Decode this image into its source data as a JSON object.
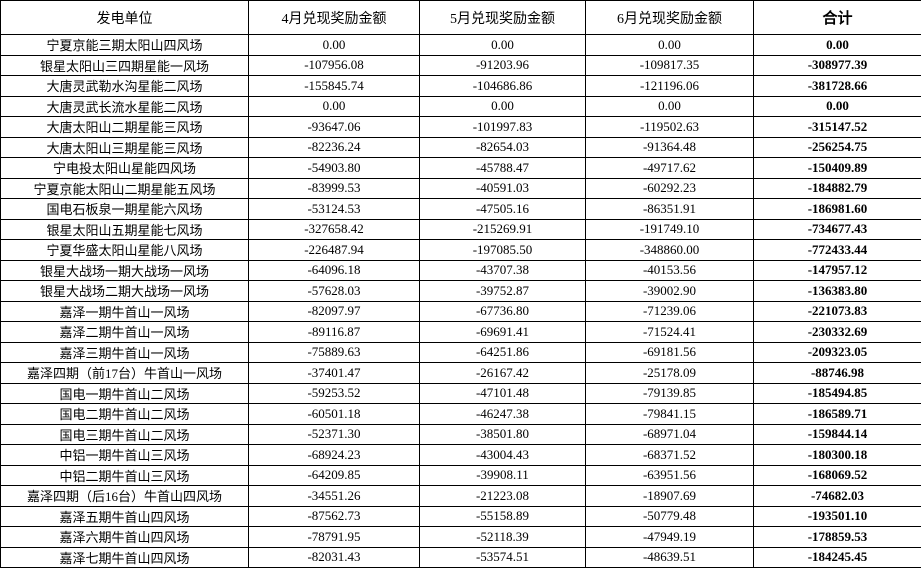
{
  "colors": {
    "border": "#000000",
    "text": "#000000",
    "background": "#ffffff"
  },
  "table": {
    "headers": [
      "发电单位",
      "4月兑现奖励金额",
      "5月兑现奖励金额",
      "6月兑现奖励金额",
      "合计"
    ],
    "rows": [
      [
        "宁夏京能三期太阳山四风场",
        "0.00",
        "0.00",
        "0.00",
        "0.00"
      ],
      [
        "银星太阳山三四期星能一风场",
        "-107956.08",
        "-91203.96",
        "-109817.35",
        "-308977.39"
      ],
      [
        "大唐灵武勒水沟星能二风场",
        "-155845.74",
        "-104686.86",
        "-121196.06",
        "-381728.66"
      ],
      [
        "大唐灵武长流水星能二风场",
        "0.00",
        "0.00",
        "0.00",
        "0.00"
      ],
      [
        "大唐太阳山二期星能三风场",
        "-93647.06",
        "-101997.83",
        "-119502.63",
        "-315147.52"
      ],
      [
        "大唐太阳山三期星能三风场",
        "-82236.24",
        "-82654.03",
        "-91364.48",
        "-256254.75"
      ],
      [
        "宁电投太阳山星能四风场",
        "-54903.80",
        "-45788.47",
        "-49717.62",
        "-150409.89"
      ],
      [
        "宁夏京能太阳山二期星能五风场",
        "-83999.53",
        "-40591.03",
        "-60292.23",
        "-184882.79"
      ],
      [
        "国电石板泉一期星能六风场",
        "-53124.53",
        "-47505.16",
        "-86351.91",
        "-186981.60"
      ],
      [
        "银星太阳山五期星能七风场",
        "-327658.42",
        "-215269.91",
        "-191749.10",
        "-734677.43"
      ],
      [
        "宁夏华盛太阳山星能八风场",
        "-226487.94",
        "-197085.50",
        "-348860.00",
        "-772433.44"
      ],
      [
        "银星大战场一期大战场一风场",
        "-64096.18",
        "-43707.38",
        "-40153.56",
        "-147957.12"
      ],
      [
        "银星大战场二期大战场一风场",
        "-57628.03",
        "-39752.87",
        "-39002.90",
        "-136383.80"
      ],
      [
        "嘉泽一期牛首山一风场",
        "-82097.97",
        "-67736.80",
        "-71239.06",
        "-221073.83"
      ],
      [
        "嘉泽二期牛首山一风场",
        "-89116.87",
        "-69691.41",
        "-71524.41",
        "-230332.69"
      ],
      [
        "嘉泽三期牛首山一风场",
        "-75889.63",
        "-64251.86",
        "-69181.56",
        "-209323.05"
      ],
      [
        "嘉泽四期（前17台）牛首山一风场",
        "-37401.47",
        "-26167.42",
        "-25178.09",
        "-88746.98"
      ],
      [
        "国电一期牛首山二风场",
        "-59253.52",
        "-47101.48",
        "-79139.85",
        "-185494.85"
      ],
      [
        "国电二期牛首山二风场",
        "-60501.18",
        "-46247.38",
        "-79841.15",
        "-186589.71"
      ],
      [
        "国电三期牛首山二风场",
        "-52371.30",
        "-38501.80",
        "-68971.04",
        "-159844.14"
      ],
      [
        "中铝一期牛首山三风场",
        "-68924.23",
        "-43004.43",
        "-68371.52",
        "-180300.18"
      ],
      [
        "中铝二期牛首山三风场",
        "-64209.85",
        "-39908.11",
        "-63951.56",
        "-168069.52"
      ],
      [
        "嘉泽四期（后16台）牛首山四风场",
        "-34551.26",
        "-21223.08",
        "-18907.69",
        "-74682.03"
      ],
      [
        "嘉泽五期牛首山四风场",
        "-87562.73",
        "-55158.89",
        "-50779.48",
        "-193501.10"
      ],
      [
        "嘉泽六期牛首山四风场",
        "-78791.95",
        "-52118.39",
        "-47949.19",
        "-178859.53"
      ],
      [
        "嘉泽七期牛首山四风场",
        "-82031.43",
        "-53574.51",
        "-48639.51",
        "-184245.45"
      ]
    ]
  }
}
